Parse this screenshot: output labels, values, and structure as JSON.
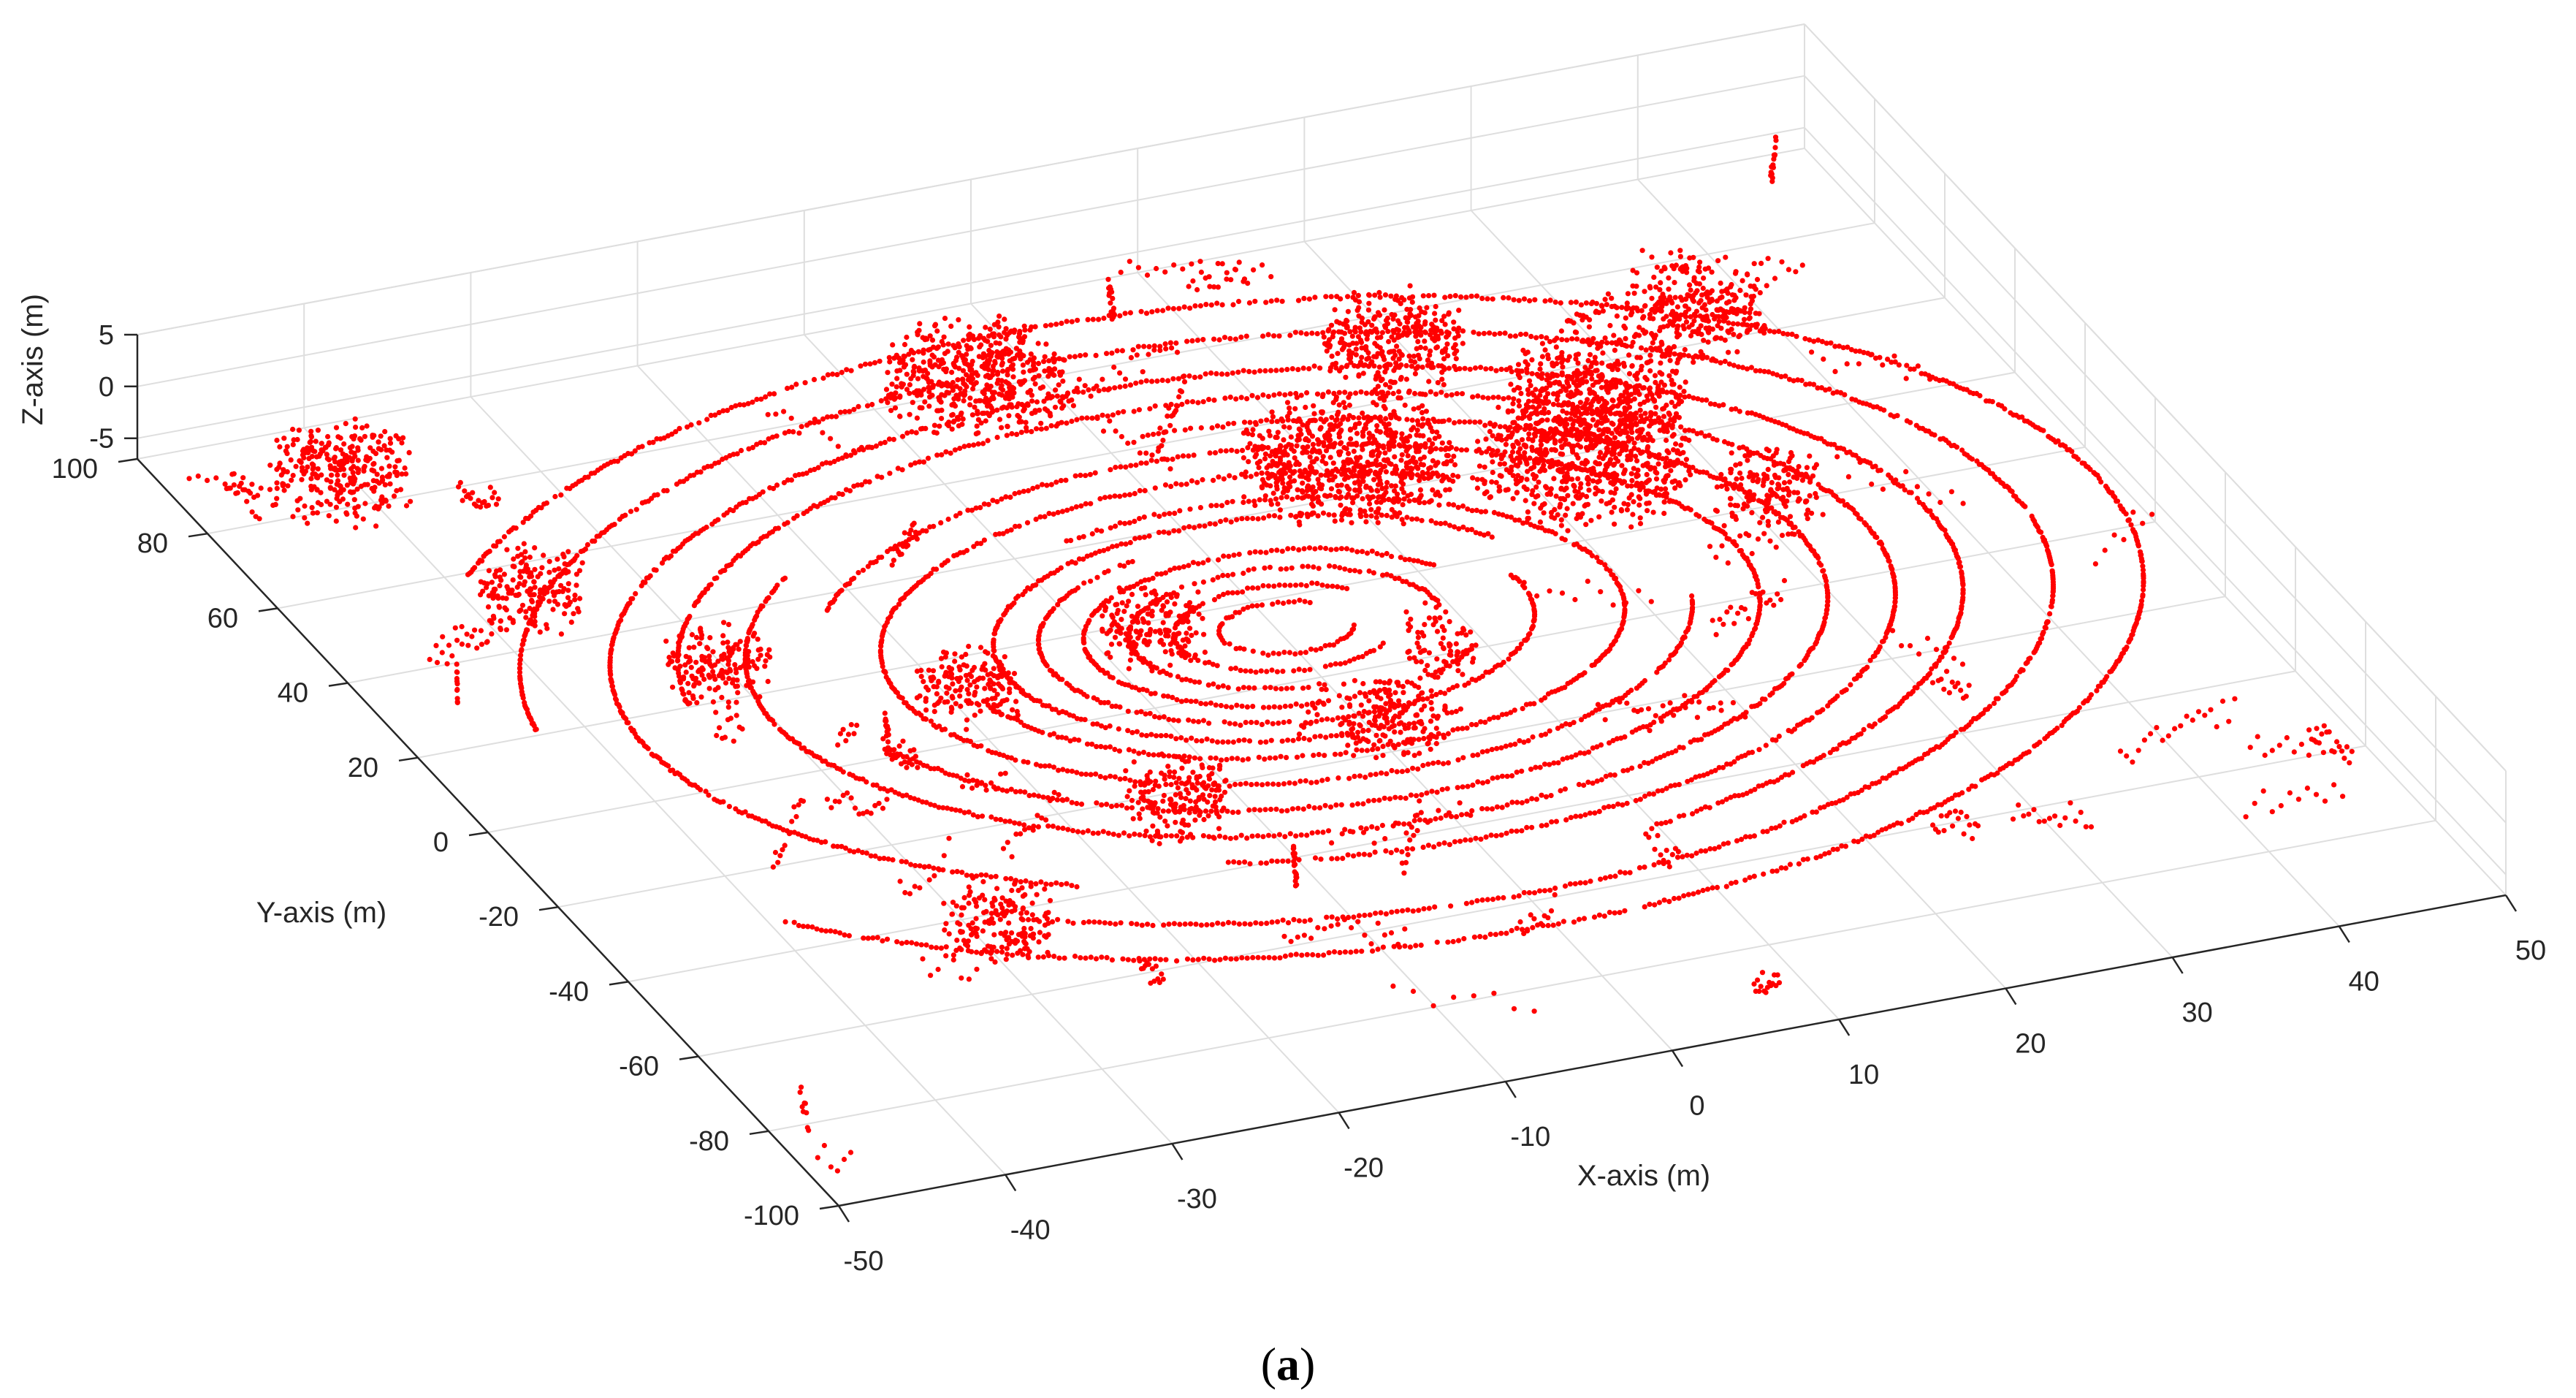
{
  "chart_data": {
    "type": "scatter",
    "subtype": "3d-point-cloud",
    "title": "",
    "xlabel": "X-axis (m)",
    "ylabel": "Y-axis (m)",
    "zlabel": "Z-axis (m)",
    "xlim": [
      -50,
      50
    ],
    "ylim": [
      -100,
      100
    ],
    "zlim": [
      -7,
      5
    ],
    "x_ticks": [
      -50,
      -40,
      -30,
      -20,
      -10,
      0,
      10,
      20,
      30,
      40,
      50
    ],
    "y_ticks": [
      -100,
      -80,
      -60,
      -40,
      -20,
      0,
      20,
      40,
      60,
      80,
      100
    ],
    "z_ticks": [
      -5,
      0,
      5
    ],
    "x_tick_labels": [
      "-50",
      "-40",
      "-30",
      "-20",
      "-10",
      "0",
      "10",
      "20",
      "30",
      "40",
      "50"
    ],
    "y_tick_labels": [
      "-100",
      "-80",
      "-60",
      "-40",
      "-20",
      "0",
      "20",
      "40",
      "60",
      "80",
      "100"
    ],
    "z_tick_labels": [
      "-5",
      "0",
      "5"
    ],
    "grid": true,
    "marker_color": "#ff0000",
    "series": [
      {
        "points_description": "LiDAR scan: concentric rings around the sensor near the origin, dense clusters from surrounding objects",
        "ring_radii": [
          3,
          5,
          7,
          9,
          11,
          13,
          15,
          18,
          21,
          24,
          27,
          30,
          34,
          38
        ],
        "clusters": [
          {
            "x": 10,
            "y": 40,
            "r": 6
          },
          {
            "x": 22,
            "y": 30,
            "r": 6
          },
          {
            "x": 26,
            "y": 45,
            "r": 5
          },
          {
            "x": 35,
            "y": 60,
            "r": 4
          },
          {
            "x": -8,
            "y": 10,
            "r": 3
          },
          {
            "x": -20,
            "y": 5,
            "r": 3
          },
          {
            "x": -32,
            "y": 20,
            "r": 3
          },
          {
            "x": -38,
            "y": 45,
            "r": 3
          },
          {
            "x": -42,
            "y": 80,
            "r": 4
          },
          {
            "x": -15,
            "y": -30,
            "r": 3
          },
          {
            "x": -30,
            "y": -50,
            "r": 3
          },
          {
            "x": 0,
            "y": -20,
            "r": 3
          },
          {
            "x": 6,
            "y": -5,
            "r": 2
          },
          {
            "x": 30,
            "y": 15,
            "r": 3
          },
          {
            "x": 18,
            "y": 65,
            "r": 4
          },
          {
            "x": -5,
            "y": 75,
            "r": 5
          }
        ]
      }
    ]
  },
  "caption": {
    "open": "(",
    "letter": "a",
    "close": ")"
  }
}
